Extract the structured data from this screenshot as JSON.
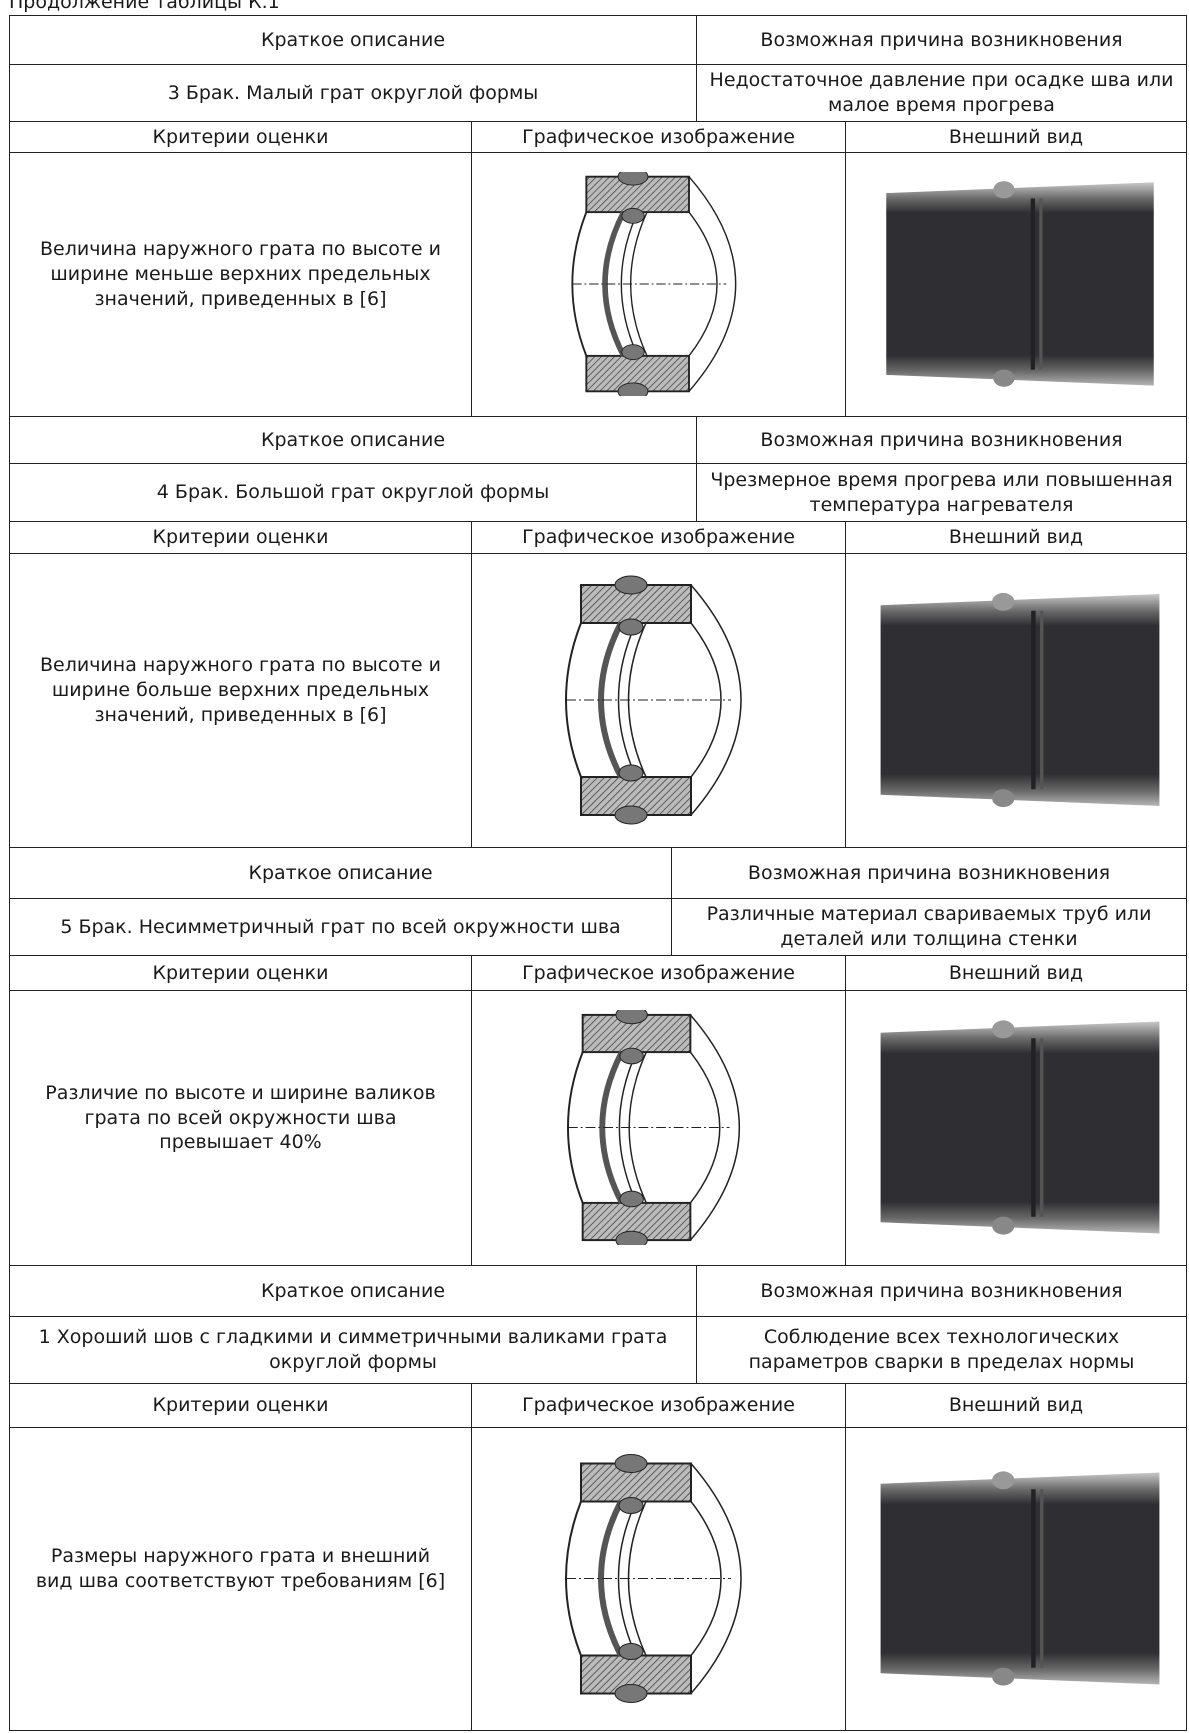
{
  "caption": "Продолжение таблицы К.1",
  "blocks": [
    {
      "short_description_header": "Краткое описание",
      "cause_header": "Возможная причина возникновения",
      "description": "3 Брак. Малый грат округлой формы",
      "cause": "Недостаточное давление при осадке шва или малое время прогрева",
      "criteria_header": "Критерии оценки",
      "graphic_header": "Графическое изображение",
      "appearance_header": "Внешний вид",
      "criteria": "Величина наружного грата по высоте и ширине меньше верхних предельных значений, приведенных в [6]"
    },
    {
      "short_description_header": "Краткое описание",
      "cause_header": "Возможная причина возникновения",
      "description": "4 Брак. Большой грат округлой формы",
      "cause": "Чрезмерное время прогрева или повышенная температура нагревателя",
      "criteria_header": "Критерии оценки",
      "graphic_header": "Графическое изображение",
      "appearance_header": "Внешний вид",
      "criteria": "Величина наружного грата по высоте и ширине больше верхних предельных значений, приведенных в [6]"
    },
    {
      "short_description_header": "Краткое описание",
      "cause_header": "Возможная причина возникновения",
      "description": "5 Брак. Несимметричный грат по всей окружности шва",
      "cause": "Различные материал свариваемых труб или деталей или толщина стенки",
      "criteria_header": "Критерии оценки",
      "graphic_header": "Графическое изображение",
      "appearance_header": "Внешний вид",
      "criteria": "Различие по высоте и ширине валиков грата по всей окружности шва превышает 40%"
    },
    {
      "short_description_header": "Краткое описание",
      "cause_header": "Возможная причина возникновения",
      "description": "1 Хороший шов с гладкими и симметричными валиками грата округлой формы",
      "cause": "Соблюдение всех технологических параметров сварки в пределах нормы",
      "criteria_header": "Критерии оценки",
      "graphic_header": "Графическое изображение",
      "appearance_header": "Внешний вид",
      "criteria": "Размеры наружного грата и внешний вид шва соответствуют требованиям [6]"
    }
  ]
}
